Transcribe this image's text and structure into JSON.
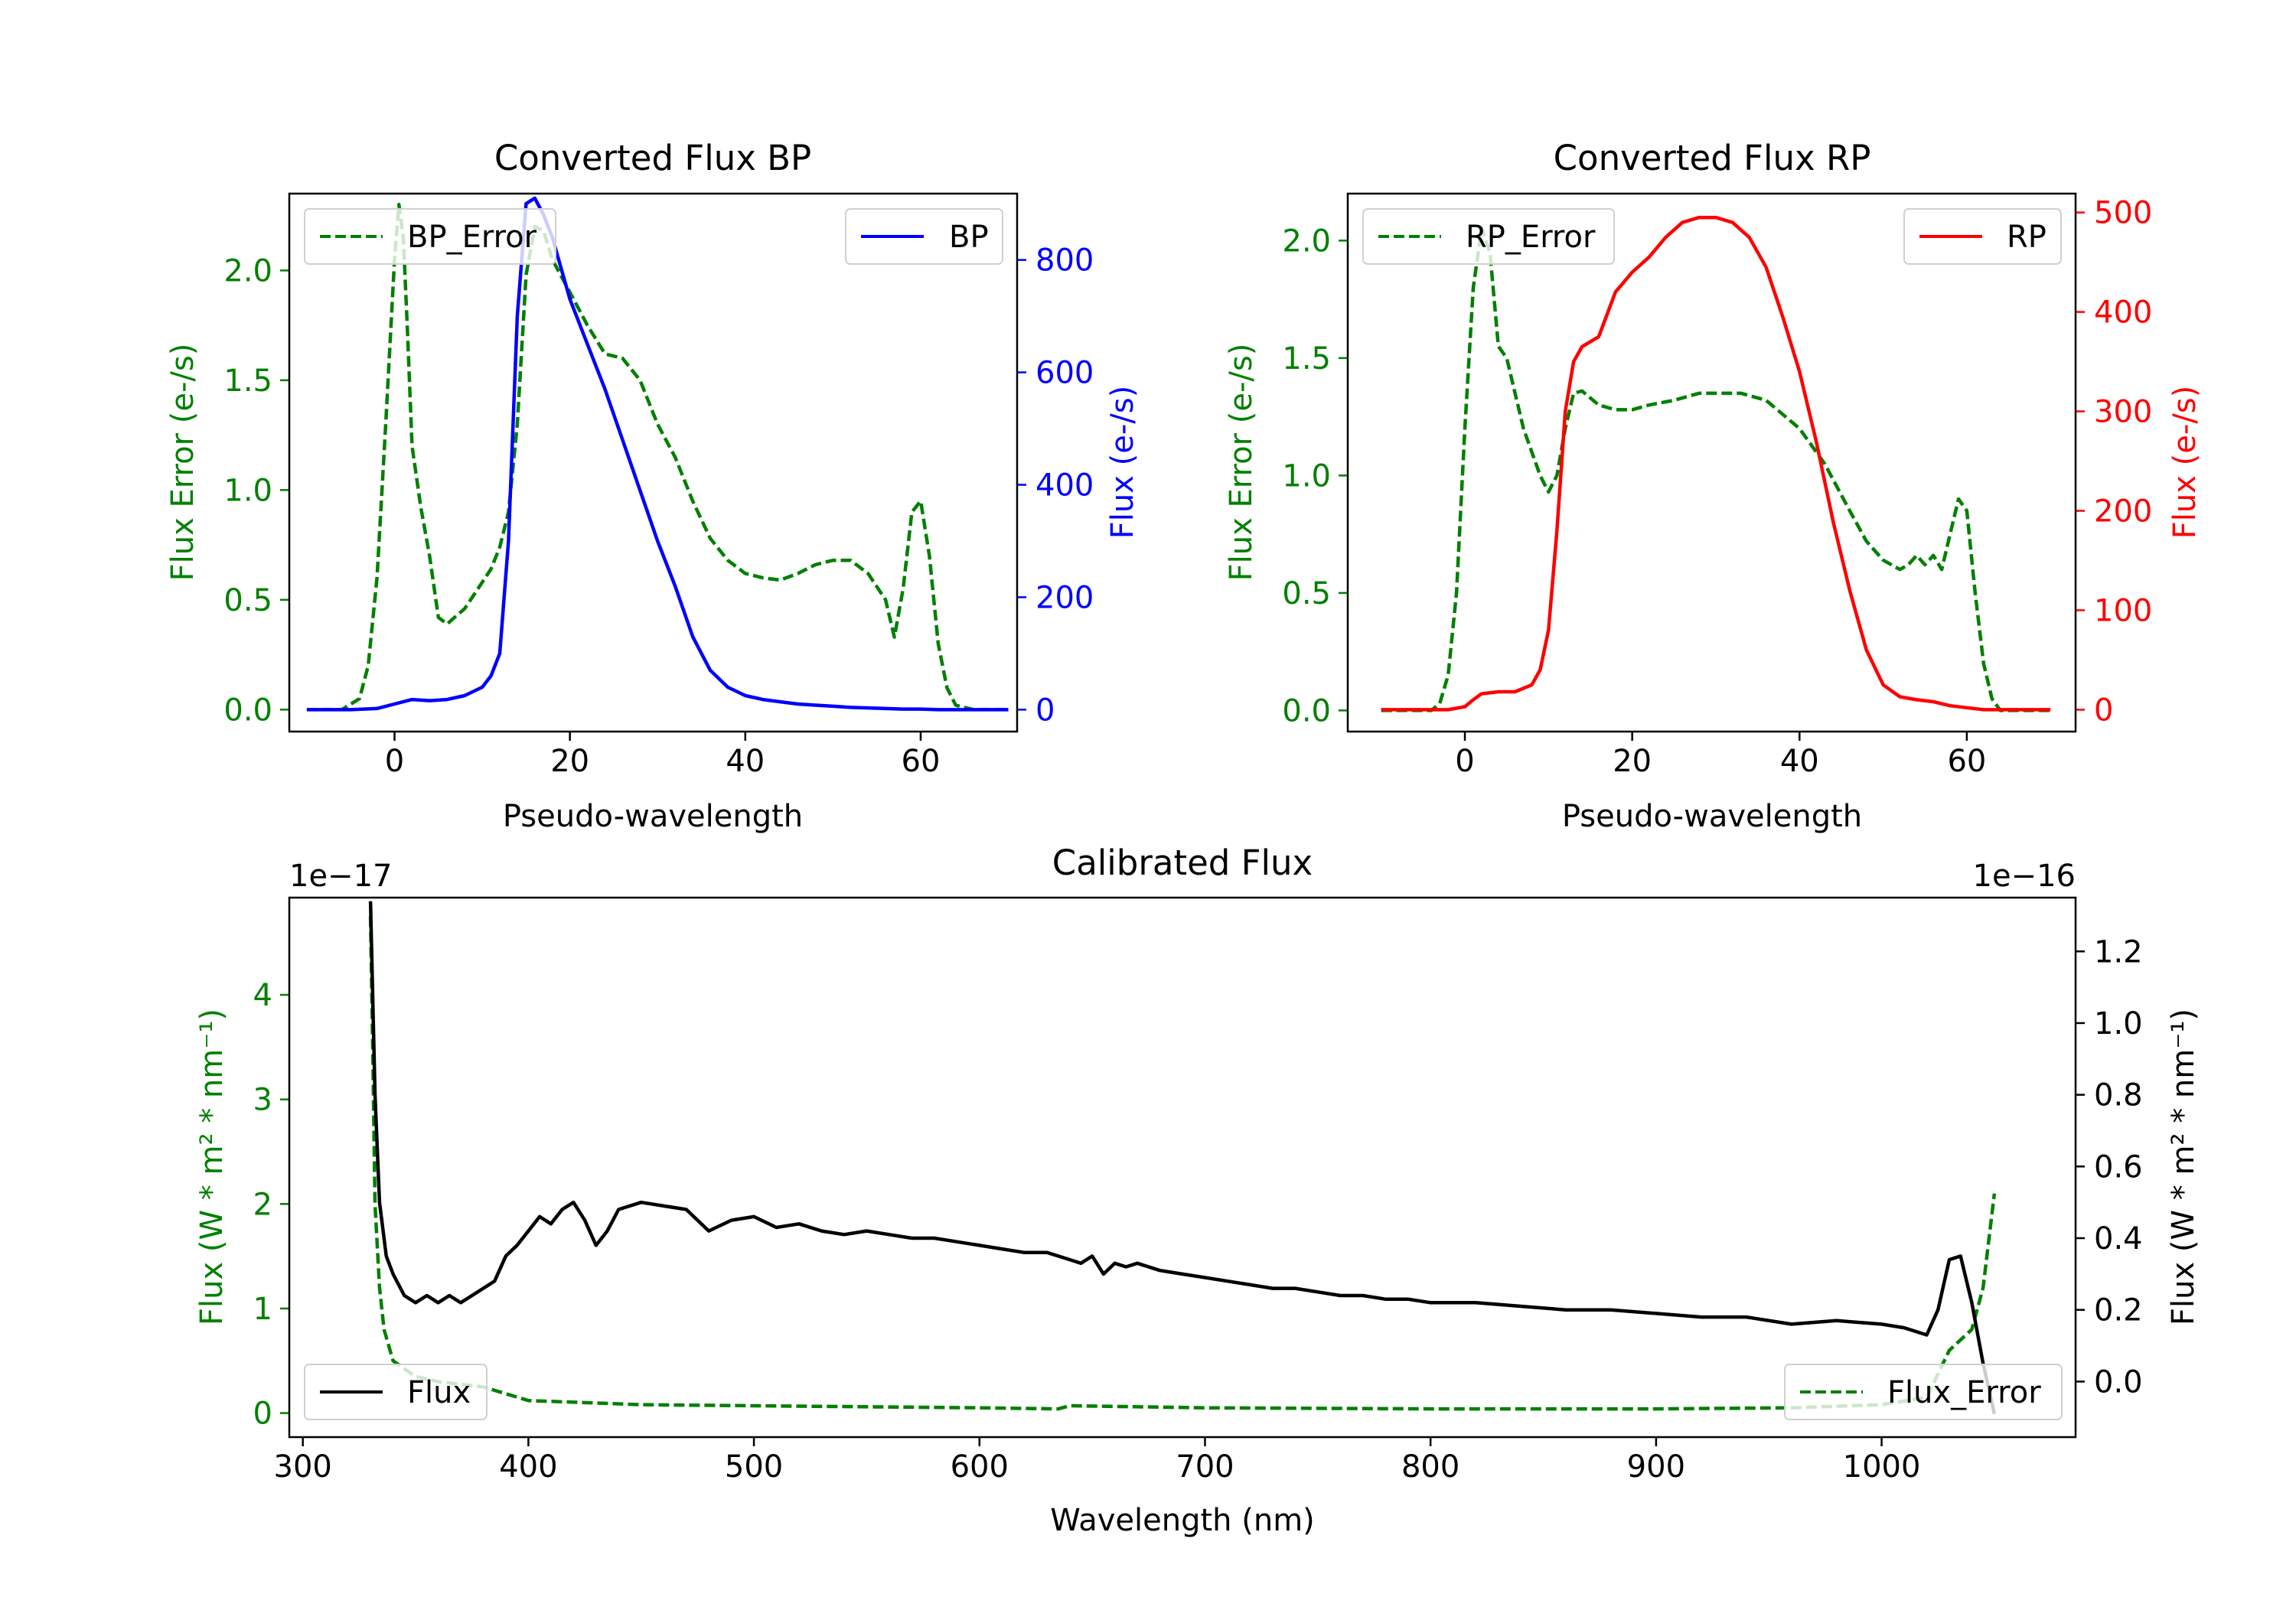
{
  "colors": {
    "green": "#008000",
    "blue": "#0000ff",
    "red": "#ff0000",
    "black": "#000000"
  },
  "chart_data": [
    {
      "type": "line",
      "title": "Converted Flux BP",
      "xlabel": "Pseudo-wavelength",
      "ylabel_left": "Flux Error (e-/s)",
      "ylabel_right": "Flux (e-/s)",
      "xlim": [
        -12,
        71
      ],
      "ylim_left": [
        -0.1,
        2.35
      ],
      "ylim_right": [
        -39,
        918
      ],
      "xticks": [
        0,
        20,
        40,
        60
      ],
      "yticks_left": [
        "0.0",
        "0.5",
        "1.0",
        "1.5",
        "2.0"
      ],
      "yticks_right": [
        "0",
        "200",
        "400",
        "600",
        "800"
      ],
      "series": [
        {
          "name": "BP_Error",
          "axis": "left",
          "color": "#008000",
          "dash": true,
          "x": [
            -10,
            -6,
            -4,
            -3,
            -2,
            -1,
            0,
            0.5,
            1,
            1.5,
            2,
            3,
            4,
            5,
            6,
            8,
            10,
            11,
            12,
            13,
            14,
            15,
            16,
            17,
            18,
            20,
            22,
            24,
            26,
            28,
            30,
            32,
            34,
            36,
            38,
            40,
            42,
            44,
            46,
            48,
            50,
            52,
            54,
            56,
            57,
            58,
            59,
            60,
            61,
            62,
            63,
            64,
            66,
            70
          ],
          "y": [
            0,
            0,
            0.05,
            0.2,
            0.6,
            1.3,
            2.05,
            2.3,
            2.15,
            1.7,
            1.2,
            0.92,
            0.7,
            0.42,
            0.39,
            0.46,
            0.58,
            0.64,
            0.74,
            0.9,
            1.3,
            1.98,
            2.2,
            2.18,
            2.05,
            1.9,
            1.75,
            1.62,
            1.6,
            1.5,
            1.3,
            1.15,
            0.95,
            0.78,
            0.68,
            0.62,
            0.6,
            0.59,
            0.62,
            0.66,
            0.68,
            0.68,
            0.62,
            0.5,
            0.33,
            0.55,
            0.9,
            0.95,
            0.7,
            0.3,
            0.1,
            0.02,
            0,
            0
          ]
        },
        {
          "name": "BP",
          "axis": "right",
          "color": "#0000ff",
          "dash": false,
          "x": [
            -10,
            -5,
            -2,
            0,
            2,
            4,
            6,
            8,
            10,
            11,
            12,
            13,
            14,
            15,
            16,
            17,
            18,
            20,
            22,
            24,
            26,
            28,
            30,
            32,
            34,
            36,
            38,
            40,
            42,
            44,
            46,
            48,
            50,
            52,
            54,
            56,
            58,
            60,
            62,
            64,
            66,
            70
          ],
          "y": [
            0,
            0,
            2,
            10,
            18,
            16,
            18,
            25,
            40,
            60,
            100,
            300,
            700,
            900,
            910,
            880,
            840,
            730,
            650,
            570,
            480,
            390,
            300,
            220,
            130,
            70,
            40,
            25,
            18,
            14,
            10,
            8,
            6,
            4,
            3,
            2,
            1,
            1,
            0,
            0,
            0,
            0
          ]
        }
      ],
      "legend": [
        {
          "label": "BP_Error",
          "position": "upper-left"
        },
        {
          "label": "BP",
          "position": "upper-right"
        }
      ]
    },
    {
      "type": "line",
      "title": "Converted Flux RP",
      "xlabel": "Pseudo-wavelength",
      "ylabel_left": "Flux Error (e-/s)",
      "ylabel_right": "Flux (e-/s)",
      "xlim": [
        -14,
        73
      ],
      "ylim_left": [
        -0.09,
        2.2
      ],
      "ylim_right": [
        -22,
        519
      ],
      "xticks": [
        0,
        20,
        40,
        60
      ],
      "yticks_left": [
        "0.0",
        "0.5",
        "1.0",
        "1.5",
        "2.0"
      ],
      "yticks_right": [
        "0",
        "100",
        "200",
        "300",
        "400",
        "500"
      ],
      "series": [
        {
          "name": "RP_Error",
          "axis": "left",
          "color": "#008000",
          "dash": true,
          "x": [
            -10,
            -4,
            -3,
            -2,
            -1,
            0,
            1,
            2,
            3,
            4,
            5,
            6,
            7,
            8,
            9,
            10,
            11,
            12,
            13,
            14,
            16,
            18,
            20,
            22,
            25,
            28,
            30,
            33,
            36,
            40,
            43,
            46,
            48,
            50,
            52,
            53,
            54,
            55,
            56,
            57,
            58,
            59,
            60,
            61,
            62,
            63,
            64,
            66,
            70
          ],
          "y": [
            0,
            0,
            0.03,
            0.15,
            0.5,
            1.2,
            1.8,
            2.05,
            1.95,
            1.55,
            1.5,
            1.35,
            1.2,
            1.1,
            1.0,
            0.93,
            1.0,
            1.2,
            1.35,
            1.36,
            1.3,
            1.28,
            1.28,
            1.3,
            1.32,
            1.35,
            1.35,
            1.35,
            1.32,
            1.2,
            1.05,
            0.85,
            0.72,
            0.64,
            0.6,
            0.62,
            0.66,
            0.62,
            0.66,
            0.6,
            0.75,
            0.9,
            0.85,
            0.5,
            0.2,
            0.05,
            0,
            0,
            0
          ]
        },
        {
          "name": "RP",
          "axis": "right",
          "color": "#ff0000",
          "dash": false,
          "x": [
            -10,
            -5,
            -2,
            0,
            1,
            2,
            4,
            6,
            8,
            9,
            10,
            11,
            12,
            13,
            14,
            16,
            18,
            20,
            22,
            24,
            26,
            28,
            30,
            32,
            34,
            36,
            38,
            40,
            42,
            44,
            46,
            48,
            50,
            52,
            54,
            56,
            58,
            60,
            62,
            64,
            66,
            70
          ],
          "y": [
            0,
            0,
            0,
            3,
            10,
            16,
            18,
            18,
            25,
            40,
            80,
            180,
            300,
            350,
            365,
            375,
            420,
            440,
            455,
            475,
            490,
            495,
            495,
            490,
            475,
            445,
            395,
            340,
            270,
            190,
            120,
            60,
            25,
            13,
            10,
            8,
            4,
            2,
            0,
            0,
            0,
            0
          ]
        }
      ],
      "legend": [
        {
          "label": "RP_Error",
          "position": "upper-left"
        },
        {
          "label": "RP",
          "position": "upper-right"
        }
      ]
    },
    {
      "type": "line",
      "title": "Calibrated Flux",
      "xlabel": "Wavelength (nm)",
      "ylabel_left": "Flux (W * m² * nm⁻¹)",
      "ylabel_right": "Flux (W * m² * nm⁻¹)",
      "offset_left": "1e−17",
      "offset_right": "1e−16",
      "xlim": [
        294,
        1086
      ],
      "ylim_left": [
        -0.23,
        4.93
      ],
      "ylim_right": [
        -0.155,
        1.35
      ],
      "xticks": [
        300,
        400,
        500,
        600,
        700,
        800,
        900,
        1000
      ],
      "yticks_left": [
        "0",
        "1",
        "2",
        "3",
        "4"
      ],
      "yticks_right": [
        "0.0",
        "0.2",
        "0.4",
        "0.6",
        "0.8",
        "1.0",
        "1.2"
      ],
      "series": [
        {
          "name": "Flux_Error",
          "axis": "left",
          "color": "#008000",
          "dash": true,
          "x": [
            330,
            331,
            332,
            334,
            336,
            340,
            350,
            360,
            380,
            400,
            450,
            500,
            600,
            635,
            640,
            700,
            800,
            900,
            960,
            1000,
            1020,
            1030,
            1040,
            1045,
            1050
          ],
          "y": [
            4.75,
            3.5,
            2.0,
            1.2,
            0.8,
            0.5,
            0.35,
            0.3,
            0.25,
            0.12,
            0.08,
            0.07,
            0.05,
            0.04,
            0.07,
            0.05,
            0.04,
            0.04,
            0.05,
            0.08,
            0.15,
            0.6,
            0.8,
            1.2,
            2.1
          ]
        },
        {
          "name": "Flux",
          "axis": "right",
          "color": "#000000",
          "dash": false,
          "x": [
            330,
            332,
            334,
            337,
            340,
            345,
            350,
            355,
            360,
            365,
            370,
            375,
            380,
            385,
            390,
            395,
            400,
            405,
            410,
            415,
            420,
            425,
            430,
            435,
            440,
            450,
            460,
            470,
            480,
            490,
            500,
            510,
            520,
            530,
            540,
            550,
            560,
            570,
            580,
            590,
            600,
            610,
            620,
            630,
            640,
            645,
            650,
            655,
            660,
            665,
            670,
            680,
            690,
            700,
            710,
            720,
            730,
            740,
            750,
            760,
            770,
            780,
            790,
            800,
            820,
            840,
            860,
            880,
            900,
            920,
            940,
            960,
            980,
            1000,
            1010,
            1020,
            1025,
            1030,
            1035,
            1040,
            1045,
            1050
          ],
          "y": [
            1.34,
            0.8,
            0.5,
            0.35,
            0.3,
            0.24,
            0.22,
            0.24,
            0.22,
            0.24,
            0.22,
            0.24,
            0.26,
            0.28,
            0.35,
            0.38,
            0.42,
            0.46,
            0.44,
            0.48,
            0.5,
            0.45,
            0.38,
            0.42,
            0.48,
            0.5,
            0.49,
            0.48,
            0.42,
            0.45,
            0.46,
            0.43,
            0.44,
            0.42,
            0.41,
            0.42,
            0.41,
            0.4,
            0.4,
            0.39,
            0.38,
            0.37,
            0.36,
            0.36,
            0.34,
            0.33,
            0.35,
            0.3,
            0.33,
            0.32,
            0.33,
            0.31,
            0.3,
            0.29,
            0.28,
            0.27,
            0.26,
            0.26,
            0.25,
            0.24,
            0.24,
            0.23,
            0.23,
            0.22,
            0.22,
            0.21,
            0.2,
            0.2,
            0.19,
            0.18,
            0.18,
            0.16,
            0.17,
            0.16,
            0.15,
            0.13,
            0.2,
            0.34,
            0.35,
            0.22,
            0.05,
            -0.09
          ]
        }
      ],
      "legend": [
        {
          "label": "Flux",
          "position": "lower-left"
        },
        {
          "label": "Flux_Error",
          "position": "lower-right"
        }
      ]
    }
  ]
}
